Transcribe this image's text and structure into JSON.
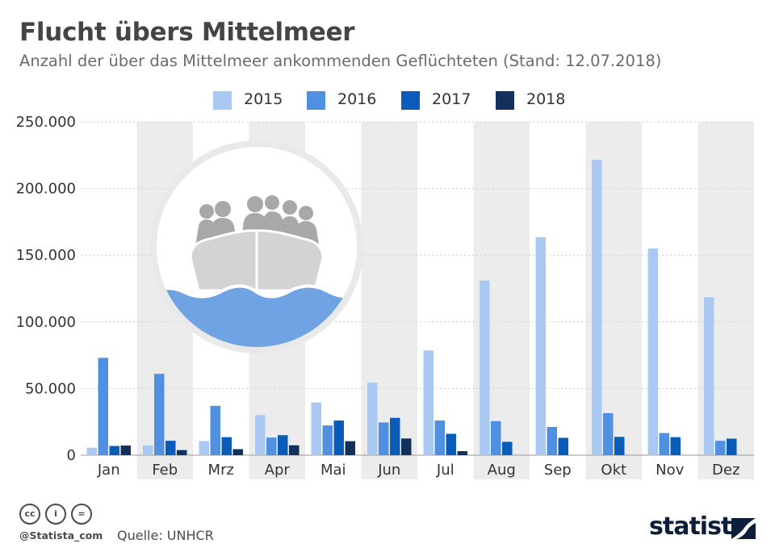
{
  "header": {
    "title": "Flucht übers Mittelmeer",
    "subtitle": "Anzahl der über das Mittelmeer ankommenden Geflüchteten (Stand: 12.07.2018)"
  },
  "colors": {
    "s2015": "#a9c9f2",
    "s2016": "#4f91e0",
    "s2017": "#0a5cb8",
    "s2018": "#132f5c",
    "band": "#ececec",
    "grid": "#cfcfcf",
    "wave": "#6fa3e3",
    "boat": "#d5d5d5",
    "people": "#a8a8a8"
  },
  "illustration": {
    "icon": "refugee-boat-icon"
  },
  "chart_data": {
    "type": "bar",
    "categories": [
      "Jan",
      "Feb",
      "Mrz",
      "Apr",
      "Mai",
      "Jun",
      "Jul",
      "Aug",
      "Sep",
      "Okt",
      "Nov",
      "Dez"
    ],
    "series": [
      {
        "name": "2015",
        "values": [
          5600,
          7300,
          10600,
          30000,
          39500,
          54500,
          78500,
          131000,
          163500,
          221500,
          155000,
          118500
        ]
      },
      {
        "name": "2016",
        "values": [
          73000,
          61000,
          37000,
          13200,
          22300,
          24500,
          26000,
          25500,
          21200,
          31500,
          16600,
          10800
        ]
      },
      {
        "name": "2017",
        "values": [
          6900,
          10800,
          13500,
          15000,
          26000,
          28000,
          16000,
          10000,
          13000,
          13700,
          13500,
          12400
        ]
      },
      {
        "name": "2018",
        "values": [
          7200,
          3800,
          4500,
          7400,
          10500,
          12500,
          3000,
          null,
          null,
          null,
          null,
          null
        ]
      }
    ],
    "yticks": [
      "0",
      "50.000",
      "100.000",
      "150.000",
      "200.000",
      "250.000"
    ],
    "ylim": [
      0,
      250000
    ],
    "grid": true,
    "legend_position": "top-center"
  },
  "footer": {
    "handle": "@Statista_com",
    "source": "Quelle: UNHCR",
    "brand": "statista",
    "license_icons": [
      "cc-icon",
      "by-icon",
      "nd-icon"
    ],
    "license_glyphs": [
      "cc",
      "i",
      "="
    ]
  }
}
